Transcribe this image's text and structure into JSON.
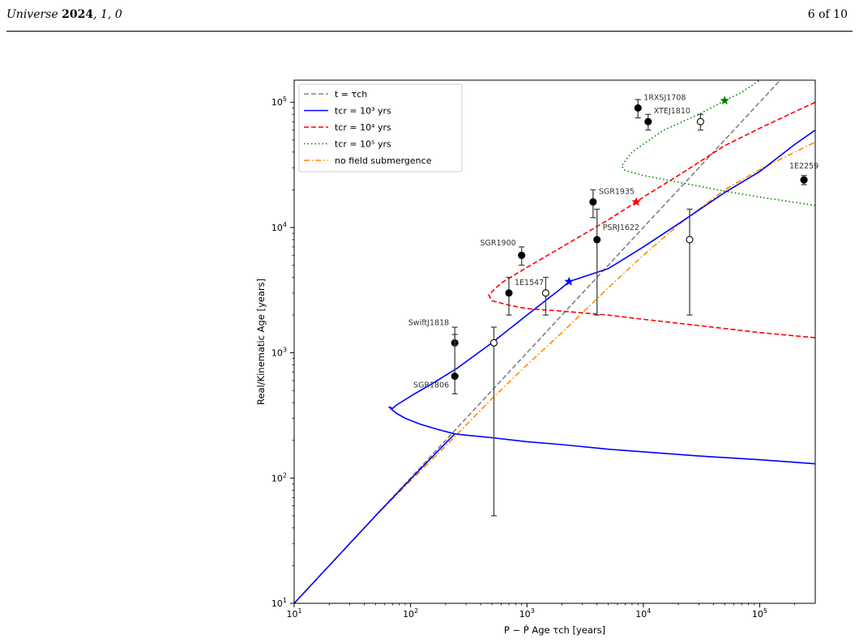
{
  "header": {
    "journal": "Universe",
    "year": "2024",
    "volume": "1",
    "article": "0",
    "page": "6 of 10"
  },
  "chart_data": {
    "type": "line",
    "xscale": "log",
    "yscale": "log",
    "xlim": [
      10,
      300000
    ],
    "ylim": [
      10,
      150000
    ],
    "xlabel": "P − Ṗ Age τch [years]",
    "ylabel": "Real/Kinematic Age [years]",
    "x_ticks": [
      {
        "base": "10",
        "exp": "1",
        "v": 10
      },
      {
        "base": "10",
        "exp": "2",
        "v": 100
      },
      {
        "base": "10",
        "exp": "3",
        "v": 1000
      },
      {
        "base": "10",
        "exp": "4",
        "v": 10000
      },
      {
        "base": "10",
        "exp": "5",
        "v": 100000
      }
    ],
    "y_ticks": [
      {
        "base": "10",
        "exp": "1",
        "v": 10
      },
      {
        "base": "10",
        "exp": "2",
        "v": 100
      },
      {
        "base": "10",
        "exp": "3",
        "v": 1000
      },
      {
        "base": "10",
        "exp": "4",
        "v": 10000
      },
      {
        "base": "10",
        "exp": "5",
        "v": 100000
      }
    ],
    "legend": {
      "position": "top-left",
      "entries": [
        {
          "label": "t = τch",
          "color": "#808080",
          "dash": "dashed"
        },
        {
          "label": "tcr = 10³ yrs",
          "color": "#0000ff",
          "dash": "solid"
        },
        {
          "label": "tcr = 10⁴ yrs",
          "color": "#ff0000",
          "dash": "dashed"
        },
        {
          "label": "tcr = 10⁵ yrs",
          "color": "#008000",
          "dash": "dotted"
        },
        {
          "label": "no field submergence",
          "color": "#ff8c00",
          "dash": "dashdot"
        }
      ]
    },
    "series": [
      {
        "label": "t = τch",
        "color": "#808080",
        "dash": "dashed",
        "points": [
          [
            10,
            10
          ],
          [
            150000,
            150000
          ]
        ]
      },
      {
        "label": "no field submergence",
        "color": "#ff8c00",
        "dash": "dashdot",
        "points": [
          [
            10,
            10
          ],
          [
            50,
            50
          ],
          [
            100,
            95
          ],
          [
            200,
            180
          ],
          [
            500,
            430
          ],
          [
            1000,
            800
          ],
          [
            2000,
            1450
          ],
          [
            5000,
            3300
          ],
          [
            10000,
            6000
          ],
          [
            20000,
            10500
          ],
          [
            50000,
            20000
          ],
          [
            100000,
            29000
          ],
          [
            200000,
            40000
          ],
          [
            300000,
            48000
          ]
        ]
      },
      {
        "label": "tcr = 10³ yrs",
        "color": "#0000ff",
        "dash": "solid",
        "points": [
          [
            10,
            10
          ],
          [
            50,
            50
          ],
          [
            100,
            98
          ],
          [
            200,
            190
          ],
          [
            240,
            225
          ],
          [
            300,
            220
          ],
          [
            500,
            210
          ],
          [
            1000,
            195
          ],
          [
            2000,
            185
          ],
          [
            5000,
            170
          ],
          [
            10000,
            162
          ],
          [
            30000,
            150
          ],
          [
            100000,
            140
          ],
          [
            300000,
            130
          ]
        ],
        "upper_points": [
          [
            300000,
            60000
          ],
          [
            200000,
            46000
          ],
          [
            100000,
            28000
          ],
          [
            50000,
            19000
          ],
          [
            20000,
            10700
          ],
          [
            10000,
            7000
          ],
          [
            5000,
            4700
          ],
          [
            2300,
            3700
          ],
          [
            2000,
            3300
          ],
          [
            1000,
            2000
          ],
          [
            500,
            1200
          ],
          [
            250,
            750
          ],
          [
            150,
            560
          ],
          [
            100,
            450
          ],
          [
            75,
            380
          ],
          [
            70,
            360
          ]
        ],
        "star": [
          2300,
          3700
        ]
      },
      {
        "label": "tcr = 10⁴ yrs",
        "color": "#ff0000",
        "dash": "dashed",
        "points": [
          [
            300000,
            1320
          ],
          [
            100000,
            1450
          ],
          [
            30000,
            1650
          ],
          [
            10000,
            1850
          ],
          [
            5000,
            2000
          ],
          [
            2000,
            2150
          ],
          [
            1000,
            2250
          ],
          [
            700,
            2400
          ],
          [
            500,
            2600
          ],
          [
            470,
            2900
          ],
          [
            600,
            3600
          ],
          [
            1000,
            4800
          ],
          [
            2000,
            7000
          ],
          [
            5000,
            11500
          ],
          [
            8700,
            16000
          ],
          [
            10000,
            17500
          ],
          [
            20000,
            26000
          ],
          [
            50000,
            45000
          ],
          [
            100000,
            62000
          ],
          [
            300000,
            100000
          ]
        ],
        "star": [
          8700,
          16000
        ]
      },
      {
        "label": "tcr = 10⁵ yrs",
        "color": "#008000",
        "dash": "dotted",
        "points": [
          [
            300000,
            15000
          ],
          [
            100000,
            17500
          ],
          [
            50000,
            19500
          ],
          [
            20000,
            23000
          ],
          [
            10000,
            26000
          ],
          [
            7000,
            28500
          ],
          [
            6500,
            31000
          ],
          [
            8000,
            40000
          ],
          [
            15000,
            60000
          ],
          [
            30000,
            80000
          ],
          [
            50000,
            103000
          ],
          [
            70000,
            120000
          ],
          [
            100000,
            150000
          ]
        ],
        "star": [
          50000,
          103000
        ]
      }
    ],
    "points": [
      {
        "name": "SwiftJ1818",
        "x": 240,
        "y": 1200,
        "yerr": [
          1200,
          1600
        ],
        "filled": true,
        "label_side": "left",
        "label_dy": -22
      },
      {
        "name": "SGR1806",
        "x": 240,
        "y": 650,
        "yerr": [
          470,
          1400
        ],
        "filled": true,
        "label_side": "left",
        "label_dy": 14
      },
      {
        "name": "",
        "x": 520,
        "y": 1200,
        "yerr": [
          50,
          1600
        ],
        "filled": false
      },
      {
        "name": "1E1547",
        "x": 700,
        "y": 3000,
        "yerr": [
          2000,
          4000
        ],
        "filled": true,
        "label_side": "right",
        "label_dy": -10
      },
      {
        "name": "",
        "x": 1450,
        "y": 3000,
        "yerr": [
          2000,
          4000
        ],
        "filled": false
      },
      {
        "name": "SGR1900",
        "x": 900,
        "y": 6000,
        "yerr": [
          5000,
          7000
        ],
        "filled": true,
        "label_side": "left",
        "label_dy": -12
      },
      {
        "name": "SGR1935",
        "x": 3700,
        "y": 16000,
        "yerr": [
          12000,
          20000
        ],
        "filled": true,
        "label_side": "right",
        "label_dy": -10
      },
      {
        "name": "PSRJ1622",
        "x": 4000,
        "y": 8000,
        "yerr": [
          2000,
          14000
        ],
        "filled": true,
        "label_side": "right",
        "label_dy": -12
      },
      {
        "name": "",
        "x": 25000,
        "y": 8000,
        "yerr": [
          2000,
          14000
        ],
        "filled": false
      },
      {
        "name": "1RXSJ1708",
        "x": 9000,
        "y": 90000,
        "yerr": [
          75000,
          105000
        ],
        "filled": true,
        "label_side": "right",
        "label_dy": -10
      },
      {
        "name": "XTEJ1810",
        "x": 11000,
        "y": 70000,
        "yerr": [
          60000,
          80000
        ],
        "filled": true,
        "label_side": "right",
        "label_dy": -10
      },
      {
        "name": "",
        "x": 31000,
        "y": 70000,
        "yerr": [
          60000,
          80000
        ],
        "filled": false
      },
      {
        "name": "1E2259",
        "x": 240000,
        "y": 24000,
        "yerr": [
          22000,
          26000
        ],
        "filled": true,
        "label_side": "center",
        "label_dy": -14
      }
    ],
    "grid": false
  }
}
